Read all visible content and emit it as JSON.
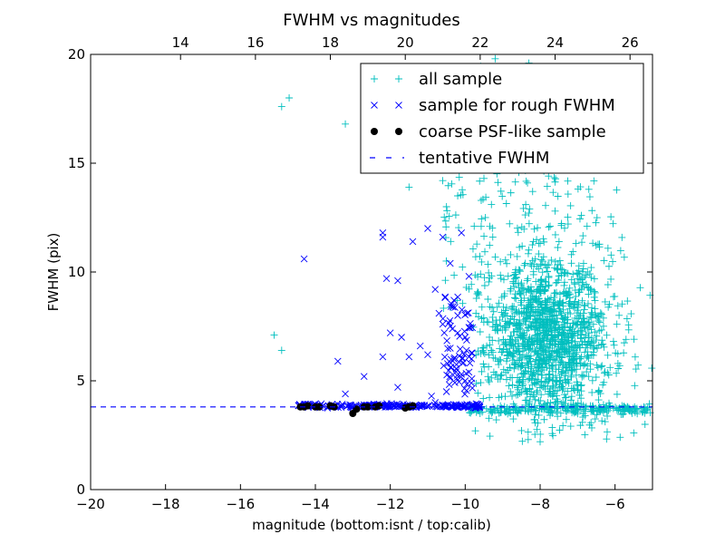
{
  "chart_data": {
    "type": "scatter",
    "title": "FWHM vs magnitudes",
    "xlabel": "magnitude (bottom:isnt / top:calib)",
    "ylabel": "FWHM (pix)",
    "xlim": [
      -20,
      -5
    ],
    "ylim": [
      0,
      20
    ],
    "xticks": [
      -20,
      -18,
      -16,
      -14,
      -12,
      -10,
      -8,
      -6
    ],
    "xtick_labels": [
      "−20",
      "−18",
      "−16",
      "−14",
      "−12",
      "−10",
      "−8",
      "−6"
    ],
    "yticks": [
      0,
      5,
      10,
      15,
      20
    ],
    "ytick_labels": [
      "0",
      "5",
      "10",
      "15",
      "20"
    ],
    "top_xticks": [
      14,
      16,
      18,
      20,
      22,
      24,
      26
    ],
    "top_xtick_labels": [
      "14",
      "16",
      "18",
      "20",
      "22",
      "24",
      "26"
    ],
    "top_axis_offset": 31.6,
    "grid": false,
    "legend_position": "top-right",
    "colors": {
      "all_sample": "#00bfbf",
      "rough_sample": "#0000ff",
      "psf_sample": "#000000",
      "tentative": "#0000ff"
    },
    "series": [
      {
        "name": "all sample",
        "marker": "+",
        "cluster_center": [
          -7.8,
          6.0
        ],
        "cluster_range_x": [
          -9.8,
          -5.0
        ],
        "cluster_range_y": [
          2.2,
          19.5
        ],
        "n_points_approx": 1500,
        "points": [
          [
            -14.9,
            17.6
          ],
          [
            -14.7,
            18.0
          ],
          [
            -13.2,
            16.8
          ],
          [
            -15.1,
            7.1
          ],
          [
            -14.9,
            6.4
          ],
          [
            -11.5,
            13.9
          ],
          [
            -10.6,
            14.2
          ],
          [
            -10.2,
            13.5
          ],
          [
            -9.2,
            19.8
          ],
          [
            -8.3,
            19.6
          ],
          [
            -9.5,
            14.3
          ],
          [
            -9.3,
            13.1
          ],
          [
            -8.2,
            13.7
          ],
          [
            -7.6,
            12.8
          ],
          [
            -6.7,
            13.8
          ],
          [
            -6.9,
            12.6
          ],
          [
            -8.0,
            2.2
          ],
          [
            -5.5,
            2.6
          ],
          [
            -5.2,
            3.0
          ],
          [
            -10.5,
            13.0
          ]
        ]
      },
      {
        "name": "sample for rough FWHM",
        "marker": "x",
        "points": [
          [
            -14.3,
            10.6
          ],
          [
            -13.4,
            5.9
          ],
          [
            -12.7,
            5.2
          ],
          [
            -12.2,
            11.8
          ],
          [
            -12.2,
            11.6
          ],
          [
            -12.1,
            9.7
          ],
          [
            -11.8,
            9.6
          ],
          [
            -12.0,
            7.2
          ],
          [
            -11.7,
            7.0
          ],
          [
            -12.2,
            6.1
          ],
          [
            -11.4,
            11.4
          ],
          [
            -11.2,
            6.6
          ],
          [
            -11.0,
            12.0
          ],
          [
            -10.8,
            9.2
          ],
          [
            -10.6,
            11.6
          ],
          [
            -10.4,
            10.4
          ],
          [
            -10.3,
            8.7
          ],
          [
            -10.6,
            7.6
          ],
          [
            -10.2,
            7.2
          ],
          [
            -10.4,
            6.5
          ],
          [
            -10.1,
            5.3
          ],
          [
            -10.0,
            5.0
          ],
          [
            -10.5,
            4.5
          ],
          [
            -10.8,
            4.0
          ],
          [
            -11.0,
            6.2
          ],
          [
            -11.5,
            6.1
          ],
          [
            -11.8,
            4.7
          ],
          [
            -10.1,
            11.8
          ],
          [
            -9.9,
            9.8
          ],
          [
            -10.2,
            8.0
          ],
          [
            -10.0,
            7.0
          ],
          [
            -9.9,
            6.1
          ],
          [
            -9.9,
            5.4
          ],
          [
            -10.7,
            8.1
          ],
          [
            -10.3,
            6.0
          ],
          [
            -12.7,
            3.9
          ],
          [
            -13.2,
            4.4
          ],
          [
            -10.0,
            3.8
          ],
          [
            -10.3,
            3.9
          ],
          [
            -10.9,
            4.3
          ]
        ]
      },
      {
        "name": "coarse PSF-like sample",
        "marker": "o",
        "points": [
          [
            -14.4,
            3.8
          ],
          [
            -14.3,
            3.8
          ],
          [
            -14.2,
            3.85
          ],
          [
            -14.0,
            3.8
          ],
          [
            -13.9,
            3.8
          ],
          [
            -13.6,
            3.85
          ],
          [
            -13.5,
            3.8
          ],
          [
            -13.0,
            3.5
          ],
          [
            -12.9,
            3.7
          ],
          [
            -12.7,
            3.8
          ],
          [
            -12.6,
            3.8
          ],
          [
            -12.4,
            3.8
          ],
          [
            -12.3,
            3.85
          ],
          [
            -11.6,
            3.75
          ],
          [
            -11.5,
            3.8
          ],
          [
            -11.4,
            3.85
          ]
        ]
      }
    ],
    "horizontal_lines": [
      {
        "name": "tentative FWHM",
        "y": 3.8,
        "style": "dashed"
      }
    ],
    "baseline_band": {
      "y": 3.85,
      "x_range": [
        -14.5,
        -9.6
      ]
    }
  }
}
